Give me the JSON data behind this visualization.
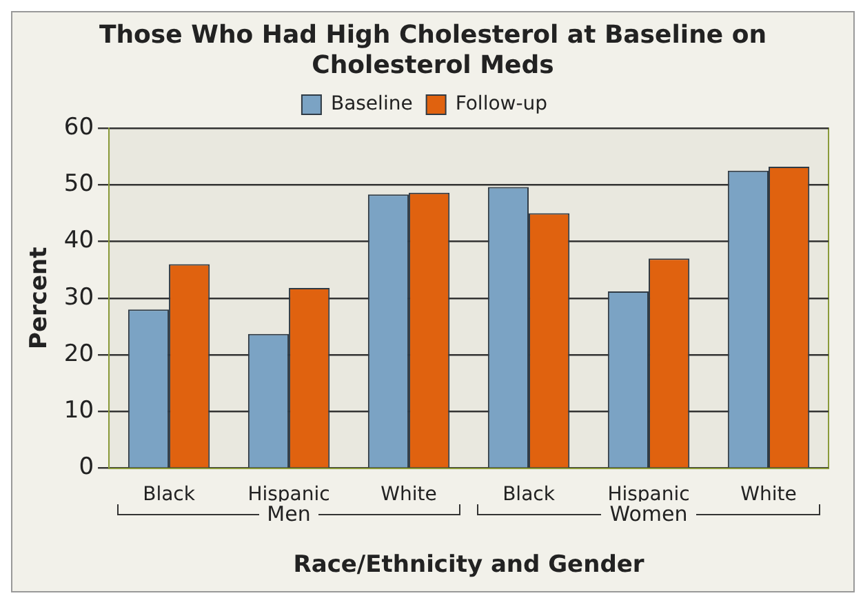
{
  "chart_data": {
    "type": "bar",
    "title": "Those Who Had High Cholesterol at Baseline on Cholesterol Meds",
    "xlabel": "Race/Ethnicity and Gender",
    "ylabel": "Percent",
    "categories": [
      "Black",
      "Hispanic",
      "White",
      "Black",
      "Hispanic",
      "White"
    ],
    "series": [
      {
        "name": "Baseline",
        "color": "#7ba3c4",
        "values": [
          28,
          23.7,
          48.3,
          49.6,
          31.2,
          52.5
        ]
      },
      {
        "name": "Follow-up",
        "color": "#e0620f",
        "values": [
          36,
          31.8,
          48.6,
          45,
          37,
          53.2
        ]
      }
    ],
    "ylim": [
      0,
      60
    ],
    "yticks": [
      0,
      10,
      20,
      30,
      40,
      50,
      60
    ],
    "grid": "y",
    "legend": "top",
    "annotations": [
      "Men",
      "Women"
    ]
  }
}
